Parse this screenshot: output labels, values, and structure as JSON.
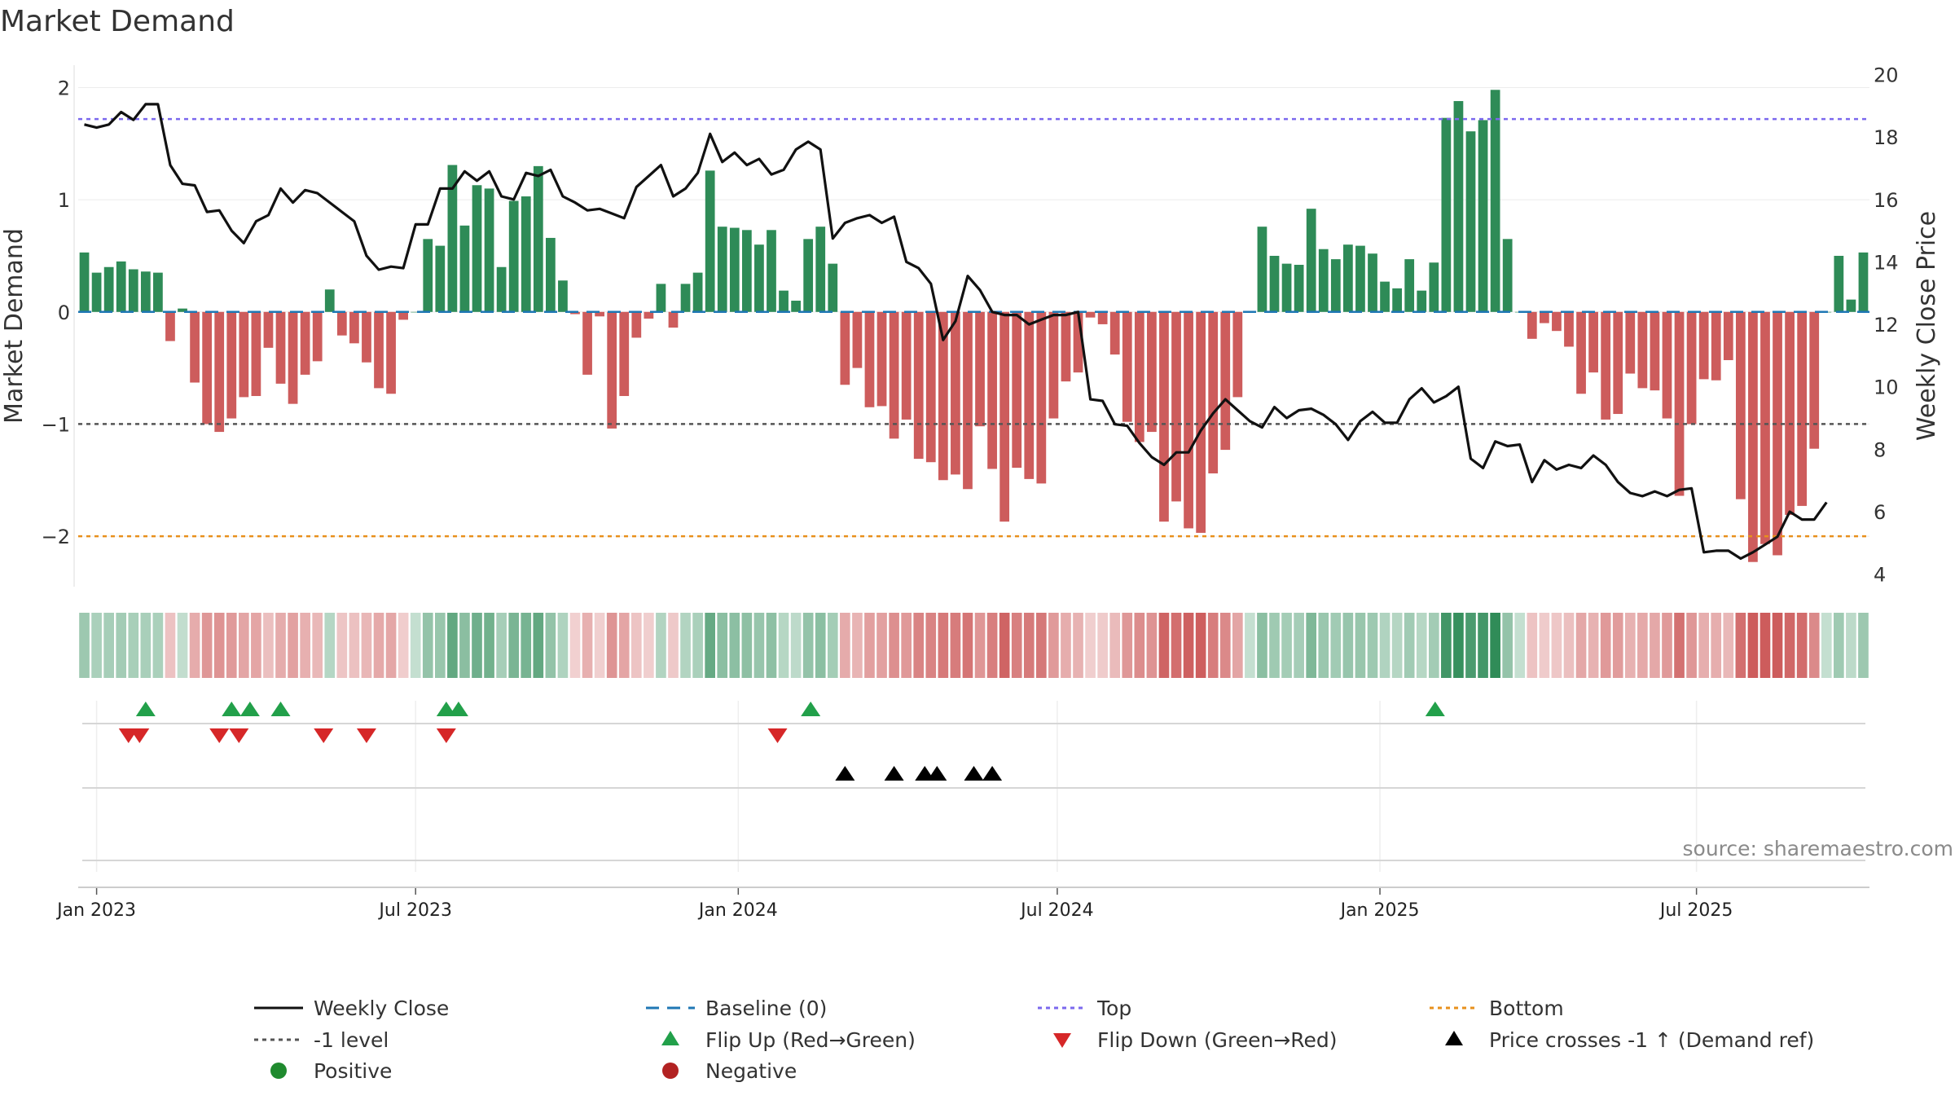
{
  "chart_data": {
    "type": "bar",
    "title": "Market Demand",
    "ylabel_left": "Market Demand",
    "ylabel_right": "Weekly Close Price",
    "xlabel": "",
    "ylim_left": [
      -2.45,
      2.2
    ],
    "ylim_right": [
      3.6,
      20.3
    ],
    "yticks_left": [
      2,
      1,
      0,
      -1,
      -2
    ],
    "yticks_left_labels": [
      "2",
      "1",
      "0",
      "−1",
      "−2"
    ],
    "yticks_right": [
      20,
      18,
      16,
      14,
      12,
      10,
      8,
      6,
      4
    ],
    "x_start": "2022-12-26",
    "x_interval_days": 7,
    "x_ticks": [
      {
        "label": "Jan 2023",
        "week": 1
      },
      {
        "label": "Jul 2023",
        "week": 27
      },
      {
        "label": "Jan 2024",
        "week": 53.3
      },
      {
        "label": "Jul 2024",
        "week": 79.3
      },
      {
        "label": "Jan 2025",
        "week": 105.6
      },
      {
        "label": "Jul 2025",
        "week": 131.4
      }
    ],
    "reference_lines": {
      "top": 1.72,
      "bottom": -2.0,
      "minus_one": -1.0,
      "baseline": 0
    },
    "demand": [
      0.53,
      0.35,
      0.4,
      0.45,
      0.38,
      0.36,
      0.35,
      -0.26,
      0.03,
      -0.63,
      -1.0,
      -1.07,
      -0.95,
      -0.76,
      -0.75,
      -0.32,
      -0.64,
      -0.82,
      -0.56,
      -0.44,
      0.2,
      -0.21,
      -0.28,
      -0.45,
      -0.68,
      -0.73,
      -0.07,
      0.0,
      0.65,
      0.59,
      1.31,
      0.77,
      1.13,
      1.1,
      0.4,
      0.99,
      1.03,
      1.3,
      0.66,
      0.28,
      -0.02,
      -0.56,
      -0.04,
      -1.04,
      -0.75,
      -0.23,
      -0.06,
      0.25,
      -0.14,
      0.25,
      0.35,
      1.26,
      0.76,
      0.75,
      0.73,
      0.6,
      0.73,
      0.19,
      0.1,
      0.65,
      0.76,
      0.43,
      -0.65,
      -0.5,
      -0.85,
      -0.84,
      -1.13,
      -0.96,
      -1.31,
      -1.34,
      -1.5,
      -1.45,
      -1.58,
      -1.02,
      -1.4,
      -1.87,
      -1.39,
      -1.49,
      -1.53,
      -0.95,
      -0.62,
      -0.54,
      -0.05,
      -0.11,
      -0.38,
      -0.98,
      -1.16,
      -1.07,
      -1.87,
      -1.69,
      -1.93,
      -1.97,
      -1.44,
      -1.23,
      -0.76,
      0.0,
      0.76,
      0.5,
      0.43,
      0.42,
      0.92,
      0.56,
      0.47,
      0.6,
      0.59,
      0.52,
      0.27,
      0.21,
      0.47,
      0.19,
      0.44,
      1.73,
      1.88,
      1.61,
      1.71,
      1.98,
      0.65,
      0.0,
      -0.24,
      -0.1,
      -0.17,
      -0.31,
      -0.73,
      -0.54,
      -0.96,
      -0.91,
      -0.55,
      -0.68,
      -0.7,
      -0.95,
      -1.64,
      -1.0,
      -0.6,
      -0.61,
      -0.43,
      -1.67,
      -2.23,
      -2.07,
      -2.17,
      -1.81,
      -1.73,
      -1.22,
      0.0,
      0.5,
      0.11,
      0.53
    ],
    "price": [
      18.4,
      18.3,
      18.4,
      18.8,
      18.55,
      19.05,
      19.05,
      17.1,
      16.5,
      16.45,
      15.6,
      15.65,
      15.0,
      14.6,
      15.3,
      15.5,
      16.35,
      15.9,
      16.3,
      16.2,
      15.9,
      15.6,
      15.3,
      14.2,
      13.75,
      13.85,
      13.8,
      15.2,
      15.2,
      16.35,
      16.35,
      16.9,
      16.6,
      16.9,
      16.1,
      16.0,
      16.85,
      16.75,
      16.95,
      16.1,
      15.9,
      15.65,
      15.7,
      15.55,
      15.4,
      16.4,
      16.75,
      17.1,
      16.1,
      16.35,
      16.85,
      18.1,
      17.2,
      17.5,
      17.1,
      17.3,
      16.8,
      16.95,
      17.6,
      17.85,
      17.6,
      14.75,
      15.25,
      15.4,
      15.5,
      15.25,
      15.45,
      14.0,
      13.8,
      13.3,
      11.5,
      12.1,
      13.55,
      13.1,
      12.4,
      12.3,
      12.3,
      12.0,
      12.15,
      12.3,
      12.3,
      12.4,
      9.6,
      9.55,
      8.8,
      8.75,
      8.2,
      7.75,
      7.5,
      7.9,
      7.9,
      8.6,
      9.15,
      9.6,
      9.25,
      8.9,
      8.7,
      9.35,
      9.0,
      9.25,
      9.3,
      9.1,
      8.8,
      8.3,
      8.9,
      9.2,
      8.85,
      8.85,
      9.6,
      9.95,
      9.5,
      9.7,
      10.0,
      7.7,
      7.4,
      8.25,
      8.1,
      8.15,
      6.95,
      7.65,
      7.35,
      7.5,
      7.4,
      7.8,
      7.5,
      6.95,
      6.6,
      6.5,
      6.65,
      6.5,
      6.7,
      6.75,
      4.7,
      4.75,
      4.75,
      4.5,
      4.7,
      4.95,
      5.2,
      6.0,
      5.75,
      5.75,
      6.3
    ],
    "flip_up_weeks": [
      5,
      12,
      13.5,
      16,
      29.5,
      30.5,
      59.2,
      110.1
    ],
    "flip_down_weeks": [
      3.6,
      4.5,
      11,
      12.6,
      19.5,
      23,
      29.5,
      56.5
    ],
    "price_cross_weeks": [
      62,
      66,
      68.5,
      69.5,
      72.5,
      74
    ],
    "legend": {
      "weekly_close": "Weekly Close",
      "baseline": "Baseline (0)",
      "top": "Top",
      "bottom": "Bottom",
      "minus_one_level": "-1 level",
      "flip_up": "Flip Up (Red→Green)",
      "flip_down": "Flip Down (Green→Red)",
      "price_cross": "Price crosses -1 ↑ (Demand ref)",
      "positive": "Positive",
      "negative": "Negative"
    },
    "source": "source: sharemaestro.com"
  },
  "colors": {
    "positive_bar": "#2e8b57",
    "negative_bar": "#cd5c5c",
    "price_line": "#111111",
    "top_line": "#7b68ee",
    "bottom_line": "#e8901c",
    "minus_one_line": "#555555",
    "baseline": "#1f77b4",
    "flip_up": "#22a04a",
    "flip_down": "#d62728",
    "price_cross": "#000000",
    "positive_dot": "#1f8a2e",
    "negative_dot": "#b22222"
  }
}
